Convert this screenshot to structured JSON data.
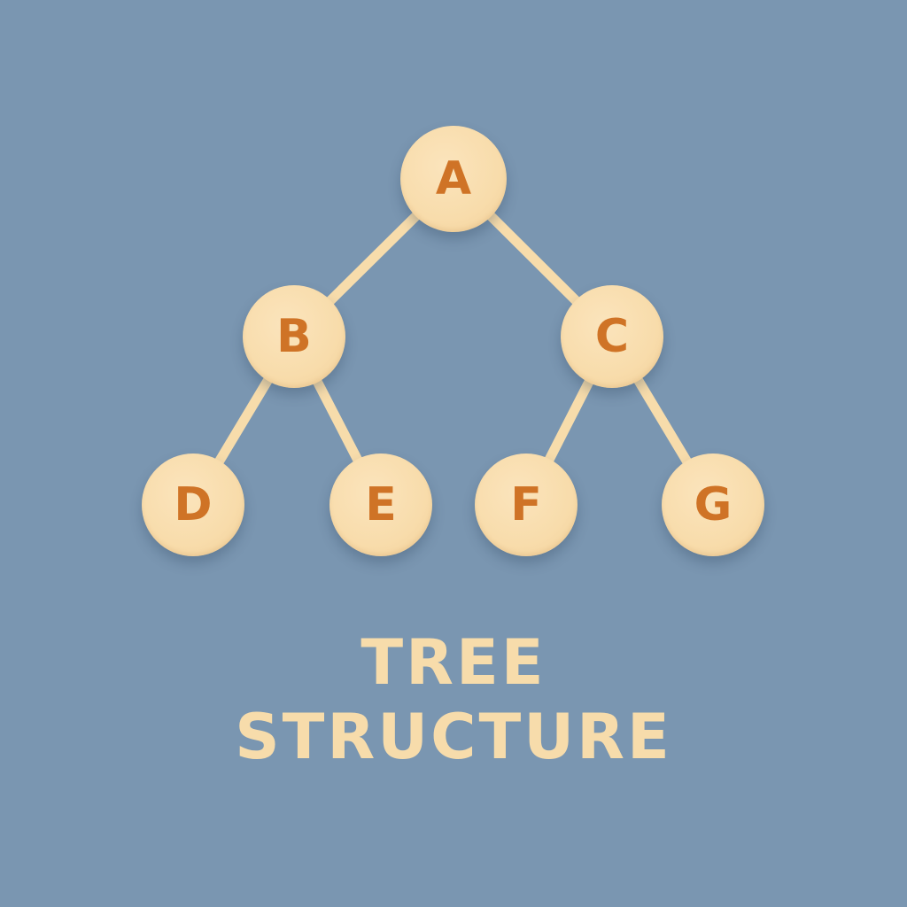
{
  "diagram": {
    "nodes": [
      {
        "id": "A",
        "label": "A"
      },
      {
        "id": "B",
        "label": "B"
      },
      {
        "id": "C",
        "label": "C"
      },
      {
        "id": "D",
        "label": "D"
      },
      {
        "id": "E",
        "label": "E"
      },
      {
        "id": "F",
        "label": "F"
      },
      {
        "id": "G",
        "label": "G"
      }
    ],
    "edges": [
      {
        "from": "A",
        "to": "B"
      },
      {
        "from": "A",
        "to": "C"
      },
      {
        "from": "B",
        "to": "D"
      },
      {
        "from": "B",
        "to": "E"
      },
      {
        "from": "C",
        "to": "F"
      },
      {
        "from": "C",
        "to": "G"
      }
    ]
  },
  "title": {
    "line1": "TREE",
    "line2": "STRUCTURE"
  },
  "colors": {
    "background": "#7a96b1",
    "node_fill": "#f8dcab",
    "node_text": "#cf7326",
    "edge": "#f7dcab",
    "title_text": "#f7dcab"
  }
}
